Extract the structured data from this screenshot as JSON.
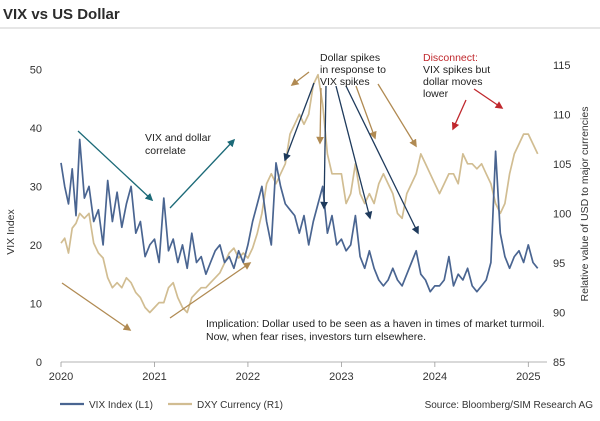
{
  "chart_data": {
    "type": "line",
    "title": "VIX vs US Dollar",
    "ylabel_left": "VIX Index",
    "ylabel_right": "Relative value of USD to major currencies",
    "ylim_left": [
      0,
      55
    ],
    "ylim_right": [
      85,
      117.5
    ],
    "yticks_left": [
      "0",
      "10",
      "20",
      "30",
      "40",
      "50"
    ],
    "yticks_right": [
      "85",
      "90",
      "95",
      "100",
      "105",
      "110",
      "115"
    ],
    "xticks": [
      "2020",
      "2021",
      "2022",
      "2023",
      "2024",
      "2025"
    ],
    "xlim": [
      2020.0,
      2025.2
    ],
    "x_tick_values": [
      2020,
      2021,
      2022,
      2023,
      2024,
      2025
    ],
    "left_tick_values": [
      0,
      10,
      20,
      30,
      40,
      50
    ],
    "right_tick_values": [
      85,
      90,
      95,
      100,
      105,
      110,
      115
    ],
    "colors": {
      "vix": "#4a6591",
      "dxy": "#d1bd92",
      "teal": "#1c6a78",
      "navy": "#1e3a5c",
      "gold": "#b08a52",
      "red": "#c0282d"
    },
    "series": [
      {
        "name": "VIX Index (L1)",
        "axis": "left",
        "x": [
          2020.0,
          2020.04,
          2020.08,
          2020.12,
          2020.16,
          2020.2,
          2020.25,
          2020.3,
          2020.35,
          2020.4,
          2020.45,
          2020.5,
          2020.55,
          2020.6,
          2020.65,
          2020.7,
          2020.75,
          2020.8,
          2020.85,
          2020.9,
          2020.95,
          2021.0,
          2021.05,
          2021.1,
          2021.15,
          2021.2,
          2021.25,
          2021.3,
          2021.35,
          2021.4,
          2021.45,
          2021.5,
          2021.55,
          2021.6,
          2021.65,
          2021.7,
          2021.75,
          2021.8,
          2021.85,
          2021.9,
          2021.95,
          2022.0,
          2022.05,
          2022.1,
          2022.15,
          2022.2,
          2022.25,
          2022.3,
          2022.35,
          2022.4,
          2022.45,
          2022.5,
          2022.55,
          2022.6,
          2022.65,
          2022.7,
          2022.75,
          2022.8,
          2022.85,
          2022.9,
          2022.95,
          2023.0,
          2023.05,
          2023.1,
          2023.15,
          2023.2,
          2023.25,
          2023.3,
          2023.35,
          2023.4,
          2023.45,
          2023.5,
          2023.55,
          2023.6,
          2023.65,
          2023.7,
          2023.75,
          2023.8,
          2023.85,
          2023.9,
          2023.95,
          2024.0,
          2024.05,
          2024.1,
          2024.15,
          2024.2,
          2024.25,
          2024.3,
          2024.35,
          2024.4,
          2024.45,
          2024.5,
          2024.55,
          2024.6,
          2024.65,
          2024.7,
          2024.75,
          2024.8,
          2024.85,
          2024.9,
          2024.95,
          2025.0,
          2025.05,
          2025.1
        ],
        "values": [
          34,
          30,
          27,
          33,
          25,
          38,
          28,
          30,
          24,
          26,
          20,
          31,
          24,
          29,
          23,
          27,
          30,
          22,
          24,
          18,
          20,
          21,
          17,
          28,
          19,
          21,
          17,
          20,
          16,
          22,
          17,
          18,
          15,
          17,
          19,
          20,
          17,
          18,
          16,
          19,
          17,
          20,
          24,
          27,
          30,
          24,
          20,
          34,
          30,
          27,
          26,
          25,
          22,
          25,
          20,
          24,
          27,
          30,
          22,
          25,
          20,
          21,
          19,
          20,
          25,
          18,
          16,
          19,
          16,
          14,
          13,
          14,
          16,
          14,
          13,
          15,
          17,
          19,
          15,
          14,
          12,
          13,
          13,
          14,
          18,
          13,
          15,
          14,
          16,
          13,
          12,
          13,
          14,
          17,
          36,
          22,
          18,
          16,
          18,
          19,
          17,
          20,
          17,
          16
        ]
      },
      {
        "name": "DXY Currency (R1)",
        "axis": "right",
        "x": [
          2020.0,
          2020.04,
          2020.08,
          2020.12,
          2020.16,
          2020.2,
          2020.25,
          2020.3,
          2020.35,
          2020.4,
          2020.45,
          2020.5,
          2020.55,
          2020.6,
          2020.65,
          2020.7,
          2020.75,
          2020.8,
          2020.85,
          2020.9,
          2020.95,
          2021.0,
          2021.05,
          2021.1,
          2021.15,
          2021.2,
          2021.25,
          2021.3,
          2021.35,
          2021.4,
          2021.45,
          2021.5,
          2021.55,
          2021.6,
          2021.65,
          2021.7,
          2021.75,
          2021.8,
          2021.85,
          2021.9,
          2021.95,
          2022.0,
          2022.05,
          2022.1,
          2022.15,
          2022.2,
          2022.25,
          2022.3,
          2022.35,
          2022.4,
          2022.45,
          2022.5,
          2022.55,
          2022.6,
          2022.65,
          2022.7,
          2022.75,
          2022.8,
          2022.85,
          2022.9,
          2022.95,
          2023.0,
          2023.05,
          2023.1,
          2023.15,
          2023.2,
          2023.25,
          2023.3,
          2023.35,
          2023.4,
          2023.45,
          2023.5,
          2023.55,
          2023.6,
          2023.65,
          2023.7,
          2023.75,
          2023.8,
          2023.85,
          2023.9,
          2023.95,
          2024.0,
          2024.05,
          2024.1,
          2024.15,
          2024.2,
          2024.25,
          2024.3,
          2024.35,
          2024.4,
          2024.45,
          2024.5,
          2024.55,
          2024.6,
          2024.65,
          2024.7,
          2024.75,
          2024.8,
          2024.85,
          2024.9,
          2024.95,
          2025.0,
          2025.05,
          2025.1
        ],
        "values": [
          97,
          97.5,
          96,
          98.5,
          99,
          100,
          99.5,
          100,
          97,
          96,
          95.5,
          93.5,
          92.5,
          93,
          92.5,
          93.5,
          93,
          92,
          91.5,
          90.5,
          90,
          90.5,
          91,
          91,
          92.5,
          93,
          91.5,
          90.5,
          90,
          91.5,
          92,
          92.5,
          92.5,
          93,
          93.5,
          94,
          95,
          96,
          96.5,
          95.5,
          96,
          95.5,
          96.5,
          98,
          100,
          103,
          104,
          103,
          104,
          105,
          108,
          109,
          110,
          109,
          110,
          113,
          114,
          111,
          106,
          104,
          104,
          104,
          101,
          102,
          105,
          102,
          101,
          102,
          101,
          103,
          104,
          103,
          102,
          100,
          99.5,
          102,
          103,
          104,
          106,
          105,
          104,
          103,
          102,
          103,
          104,
          104,
          103,
          106,
          105,
          105,
          104.5,
          105,
          104,
          103,
          101,
          100,
          101,
          104,
          106,
          107,
          108,
          108,
          107,
          106
        ]
      }
    ],
    "annotations": [
      {
        "key": "a1",
        "lines": [
          "VIX and dollar",
          "correlate"
        ]
      },
      {
        "key": "a2",
        "lines": [
          "Dollar spikes",
          "in response to",
          "VIX spikes"
        ]
      },
      {
        "key": "a3_red",
        "lines": [
          "Disconnect:"
        ]
      },
      {
        "key": "a3",
        "lines": [
          "VIX spikes but",
          "dollar moves",
          "lower"
        ]
      },
      {
        "key": "a4",
        "lines": [
          "Implication: Dollar used to be seen as a haven in times of market turmoil.",
          "Now, when fear rises, investors turn elsewhere."
        ]
      }
    ],
    "source": "Source: Bloomberg/SIM Research AG",
    "legend_position": "bottom-left",
    "grid": false
  }
}
